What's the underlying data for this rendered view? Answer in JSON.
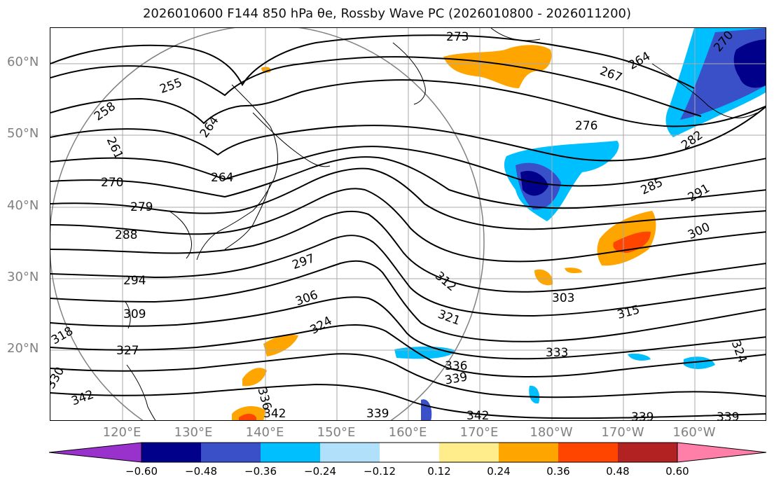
{
  "title": "2026010600 F144 850 hPa θe, Rossby Wave PC (2026010800 - 2026011200)",
  "lat_labels": [
    "60°N",
    "50°N",
    "40°N",
    "30°N",
    "20°N"
  ],
  "lon_labels": [
    "120°E",
    "130°E",
    "140°E",
    "150°E",
    "160°E",
    "170°E",
    "180°W",
    "170°W",
    "160°W"
  ],
  "colorbar": {
    "ticks": [
      "−0.60",
      "−0.48",
      "−0.36",
      "−0.24",
      "−0.12",
      "0.12",
      "0.24",
      "0.36",
      "0.48",
      "0.60"
    ],
    "colors": [
      "#9932cc",
      "#00008b",
      "#3a50c8",
      "#00bfff",
      "#b0e0fa",
      "#ffffff",
      "#ffec8b",
      "#ffa500",
      "#ff4500",
      "#b22222",
      "#ff7fa8"
    ]
  },
  "contour_labels": [
    "273",
    "270",
    "264",
    "267",
    "255",
    "258",
    "264",
    "276",
    "282",
    "261",
    "264",
    "270",
    "285",
    "291",
    "279",
    "288",
    "300",
    "297",
    "294",
    "303",
    "312",
    "306",
    "309",
    "315",
    "321",
    "324",
    "318",
    "327",
    "333",
    "324",
    "336",
    "339",
    "330",
    "342",
    "336",
    "342",
    "339",
    "342",
    "339",
    "339"
  ],
  "colors": {
    "contour": "#000000",
    "grid": "#a9a9a9",
    "coast": "#000000",
    "circle": "#808080",
    "axis_label": "#808080"
  }
}
